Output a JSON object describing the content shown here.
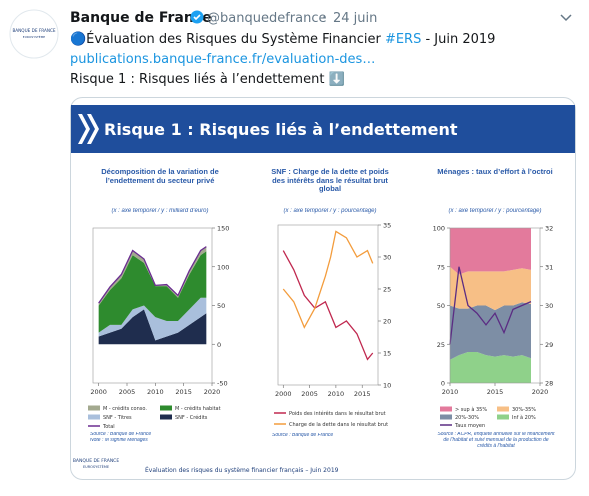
{
  "tweet": {
    "name": "Banque de France",
    "handle": "@banquedefrance",
    "separator": "·",
    "date": "24 juin",
    "avatar_text": "BANQUE DE FRANCE",
    "avatar_subtext": "EUROSYSTÈME",
    "text_parts": [
      "🔵Évaluation des Risques du Système Financier ",
      "#ERS",
      " - Juin 2019"
    ],
    "link": "publications.banque-france.fr/evaluation-des…",
    "line2": "Risque 1 : Risques liés à l’endettement ⬇️"
  },
  "image": {
    "header_title": "Risque 1 : Risques liés à l’endettement",
    "logo_text": "BANQUE DE FRANCE",
    "logo_subtext": "EUROSYSTÈME",
    "footer": "Évaluation des risques du système financier français – Juin 2019"
  },
  "chart_data": [
    {
      "type": "stacked_area",
      "title": "Décomposition de la variation de l’endettement du secteur privé",
      "subtitle": "(x : axe temporel / y : milliard d’euro)",
      "x": [
        2000,
        2002,
        2004,
        2006,
        2008,
        2010,
        2012,
        2014,
        2016,
        2018,
        2019
      ],
      "series": [
        {
          "name": "M - crédits conso.",
          "color": "#a3a98f",
          "type": "area",
          "values": [
            3,
            4,
            5,
            6,
            5,
            1,
            2,
            3,
            5,
            6,
            6
          ]
        },
        {
          "name": "M - crédits habitat",
          "color": "#2e8b2e",
          "type": "area",
          "values": [
            35,
            45,
            60,
            70,
            55,
            40,
            45,
            30,
            45,
            55,
            60
          ]
        },
        {
          "name": "SNF - Titres",
          "color": "#a9bfdc",
          "type": "area",
          "values": [
            5,
            10,
            5,
            10,
            5,
            30,
            20,
            15,
            20,
            25,
            20
          ]
        },
        {
          "name": "SNF - Crédits",
          "color": "#1f2d4e",
          "type": "area",
          "values": [
            10,
            15,
            20,
            35,
            45,
            5,
            10,
            15,
            25,
            35,
            40
          ]
        },
        {
          "name": "Total",
          "color": "#6a2c91",
          "type": "line",
          "values": [
            53,
            74,
            90,
            121,
            110,
            76,
            77,
            63,
            95,
            121,
            126
          ]
        }
      ],
      "xlim": [
        1999,
        2020
      ],
      "xticks": [
        2000,
        2005,
        2010,
        2015,
        2020
      ],
      "ylim": [
        -50,
        150
      ],
      "yticks": [
        150,
        100,
        50,
        0,
        -50
      ],
      "y_axis_side": "right",
      "source": "Source : Banque de France",
      "note": "Note : M signifie Ménages"
    },
    {
      "type": "line",
      "title": "SNF : Charge de la dette et poids des intérêts dans le résultat brut global",
      "subtitle": "(x : axe temporel / y : pourcentage)",
      "x": [
        2000,
        2002,
        2004,
        2006,
        2008,
        2009,
        2010,
        2012,
        2014,
        2016,
        2017
      ],
      "series": [
        {
          "name": "Poids des intérêts dans le résultat brut",
          "color": "#c0284f",
          "type": "line",
          "values": [
            31,
            28,
            24,
            22,
            23,
            21,
            19,
            20,
            18,
            14,
            15
          ]
        },
        {
          "name": "Charge de la dette dans le résultat brut",
          "color": "#f39c3c",
          "type": "line",
          "values": [
            25,
            23,
            19,
            22,
            27,
            30,
            34,
            33,
            30,
            31,
            29
          ]
        }
      ],
      "xlim": [
        1999,
        2018
      ],
      "xticks": [
        2000,
        2005,
        2010,
        2015
      ],
      "ylim": [
        10,
        35
      ],
      "yticks": [
        35,
        30,
        25,
        20,
        15,
        10
      ],
      "y_axis_side": "right",
      "source": "Source : Banque de France"
    },
    {
      "type": "stacked_area",
      "title": "Ménages : taux d’effort à l’octroi",
      "subtitle": "(x : axe temporel / y : pourcentage)",
      "x": [
        2010,
        2011,
        2012,
        2013,
        2014,
        2015,
        2016,
        2017,
        2018,
        2019
      ],
      "series": [
        {
          "name": "> sup à 35%",
          "color": "#e37a9c",
          "type": "area",
          "values": [
            25,
            30,
            28,
            28,
            28,
            28,
            28,
            27,
            26,
            27
          ]
        },
        {
          "name": "30%-35%",
          "color": "#f7bf86",
          "type": "area",
          "values": [
            25,
            22,
            24,
            22,
            22,
            25,
            22,
            23,
            22,
            22
          ]
        },
        {
          "name": "20%-30%",
          "color": "#7d8ea5",
          "type": "area",
          "values": [
            35,
            30,
            28,
            30,
            32,
            30,
            32,
            33,
            34,
            35
          ]
        },
        {
          "name": "Inf à 20%",
          "color": "#8fd18a",
          "type": "area",
          "values": [
            15,
            18,
            20,
            20,
            18,
            17,
            18,
            17,
            18,
            16
          ]
        },
        {
          "name": "Taux moyen",
          "color": "#5b2c83",
          "type": "line",
          "axis": "y2",
          "values": [
            29,
            31,
            30,
            29.8,
            29.5,
            29.8,
            29.3,
            29.9,
            30,
            30.1
          ]
        }
      ],
      "xlim": [
        2010,
        2020
      ],
      "xticks": [
        2010,
        2015,
        2020
      ],
      "ylim": [
        0,
        100
      ],
      "yticks": [
        100,
        75,
        50,
        25,
        0
      ],
      "y_axis_side": "left",
      "y2lim": [
        28,
        32
      ],
      "y2ticks": [
        32,
        31,
        30,
        29,
        28
      ],
      "source": "Source : ACPR, enquête annuelle sur le financement de l’habitat et suivi mensuel de la production de crédits à l’habitat"
    }
  ]
}
